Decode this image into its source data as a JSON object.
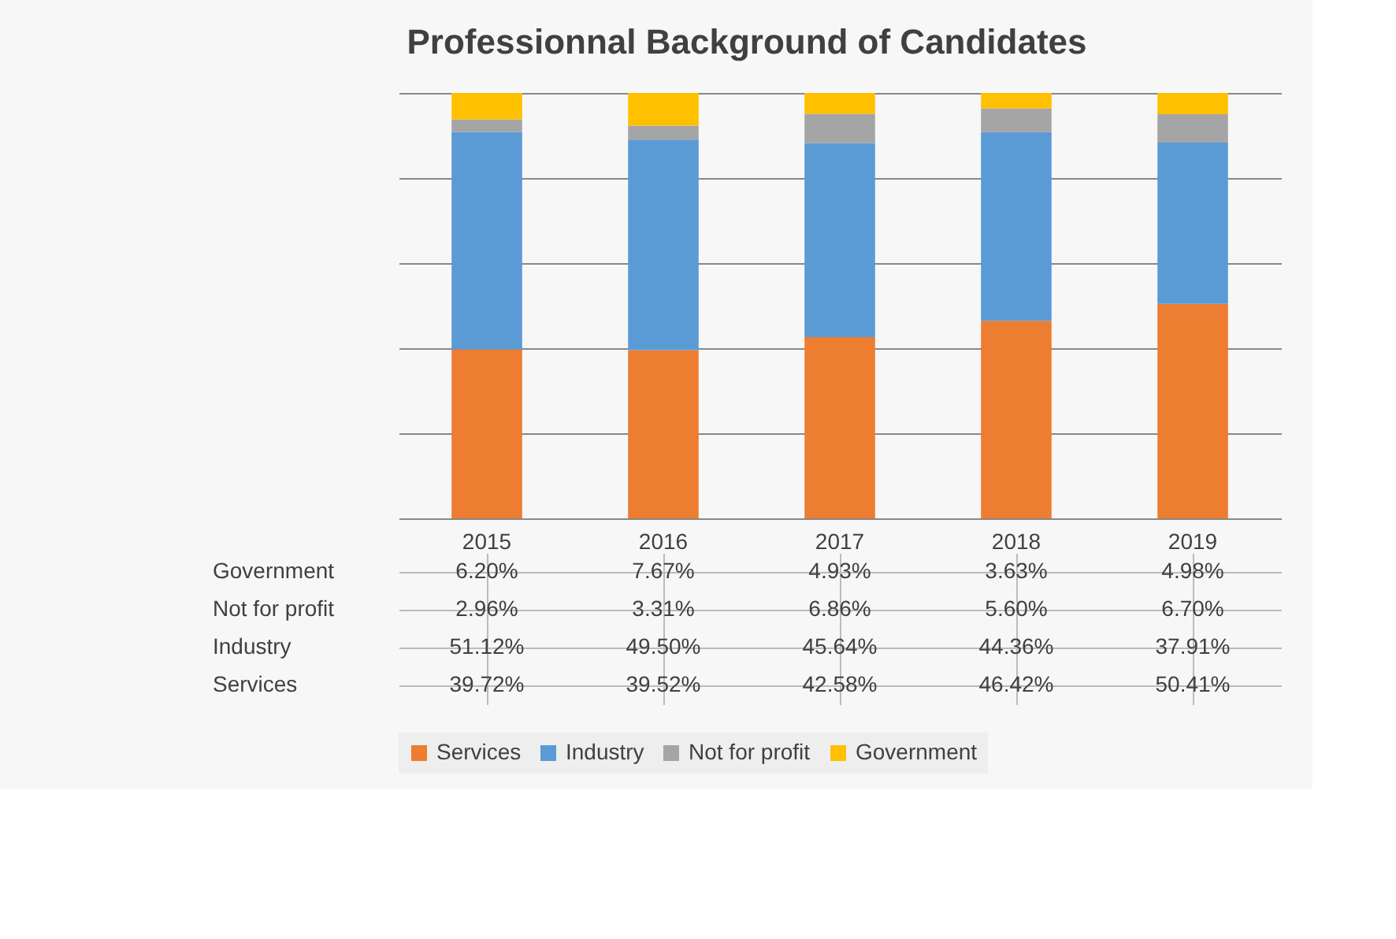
{
  "chart_data": {
    "type": "bar",
    "title": "Professionnal Background of Candidates",
    "stacked": true,
    "categories": [
      "2015",
      "2016",
      "2017",
      "2018",
      "2019"
    ],
    "series": [
      {
        "name": "Services",
        "color": "#ed7d31",
        "values": [
          39.72,
          39.52,
          42.58,
          46.42,
          50.41
        ],
        "value_labels": [
          "39.72%",
          "39.52%",
          "42.58%",
          "46.42%",
          "50.41%"
        ]
      },
      {
        "name": "Industry",
        "color": "#5b9bd5",
        "values": [
          51.12,
          49.5,
          45.64,
          44.36,
          37.91
        ],
        "value_labels": [
          "51.12%",
          "49.50%",
          "45.64%",
          "44.36%",
          "37.91%"
        ]
      },
      {
        "name": "Not for profit",
        "color": "#a5a5a5",
        "values": [
          2.96,
          3.31,
          6.86,
          5.6,
          6.7
        ],
        "value_labels": [
          "2.96%",
          "3.31%",
          "6.86%",
          "5.60%",
          "6.70%"
        ]
      },
      {
        "name": "Government",
        "color": "#ffc000",
        "values": [
          6.2,
          7.67,
          4.93,
          3.63,
          4.98
        ],
        "value_labels": [
          "6.20%",
          "7.67%",
          "4.93%",
          "3.63%",
          "4.98%"
        ]
      }
    ],
    "ylim": [
      0,
      100
    ],
    "yticks": [
      {
        "value": 0,
        "label": null
      },
      {
        "value": 20,
        "label": null
      },
      {
        "value": 40,
        "label": null
      },
      {
        "value": 60,
        "label": null
      },
      {
        "value": 80,
        "label": null
      },
      {
        "value": 100,
        "label": null
      }
    ],
    "grid": "y",
    "legend": "bottom",
    "tick_labels": "x"
  }
}
